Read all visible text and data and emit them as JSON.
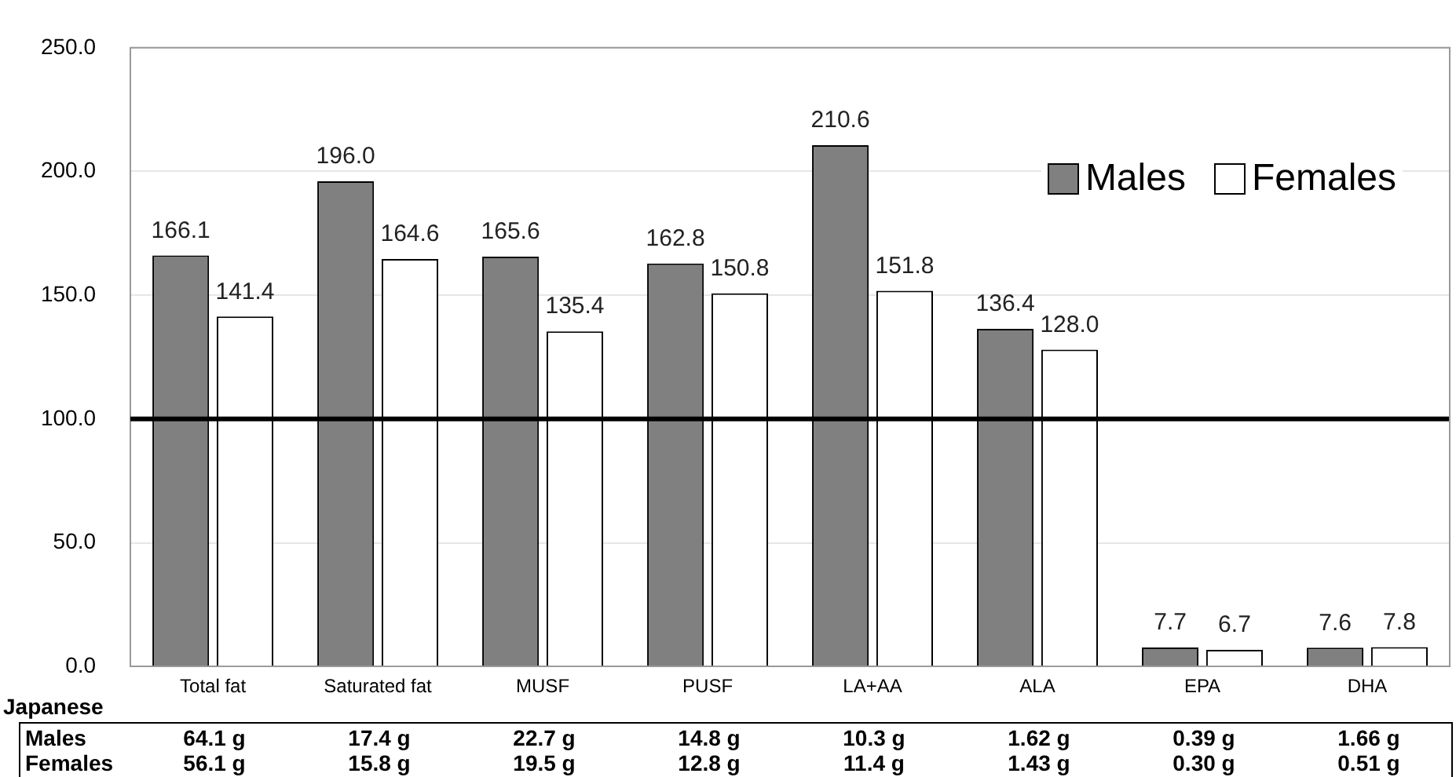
{
  "chart_data": {
    "type": "bar",
    "categories": [
      "Total fat",
      "Saturated fat",
      "MUSF",
      "PUSF",
      "LA+AA",
      "ALA",
      "EPA",
      "DHA"
    ],
    "series": [
      {
        "name": "Males",
        "color": "#808080",
        "values": [
          166.1,
          196.0,
          165.6,
          162.8,
          210.6,
          136.4,
          7.7,
          7.6
        ],
        "value_labels": [
          "166.1",
          "196.0",
          "165.6",
          "162.8",
          "210.6",
          "136.4",
          "7.7",
          "7.6"
        ]
      },
      {
        "name": "Females",
        "color": "#ffffff",
        "values": [
          141.4,
          164.6,
          135.4,
          150.8,
          151.8,
          128.0,
          6.7,
          7.8
        ],
        "value_labels": [
          "141.4",
          "164.6",
          "135.4",
          "150.8",
          "151.8",
          "128.0",
          "6.7",
          "7.8"
        ]
      }
    ],
    "ylim": [
      0,
      250
    ],
    "yticks": [
      {
        "value": 0,
        "label": "0.0"
      },
      {
        "value": 50,
        "label": "50.0"
      },
      {
        "value": 100,
        "label": "100.0"
      },
      {
        "value": 150,
        "label": "150.0"
      },
      {
        "value": 200,
        "label": "200.0"
      },
      {
        "value": 250,
        "label": "250.0"
      }
    ],
    "grid": "y",
    "legend": "top right",
    "ref_lines": [
      {
        "axis": "y",
        "value": 100,
        "color": "#000000"
      }
    ],
    "annotations": [
      "Japanese",
      "Males",
      "64.1 g",
      "17.4 g",
      "22.7 g",
      "14.8 g",
      "10.3 g",
      "1.62 g",
      "0.39 g",
      "1.66 g",
      "Females",
      "56.1 g",
      "15.8 g",
      "19.5 g",
      "12.8 g",
      "11.4 g",
      "1.43 g",
      "0.30 g",
      "0.51 g"
    ]
  }
}
